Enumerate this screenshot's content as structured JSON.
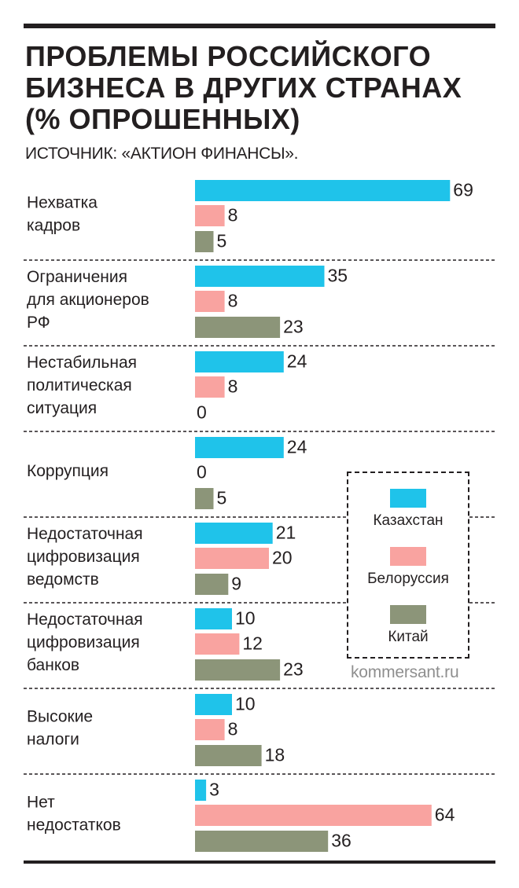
{
  "header": {
    "title_lines": [
      "ПРОБЛЕМЫ РОССИЙСКОГО",
      "БИЗНЕСА В ДРУГИХ СТРАНАХ",
      "(% ОПРОШЕННЫХ)"
    ],
    "source": "ИСТОЧНИК: «АКТИОН ФИНАНСЫ»."
  },
  "watermark": "kommersant.ru",
  "chart_data": {
    "type": "bar",
    "orientation": "horizontal",
    "title": "ПРОБЛЕМЫ РОССИЙСКОГО БИЗНЕСА В ДРУГИХ СТРАНАХ (% ОПРОШЕННЫХ)",
    "categories": [
      [
        "Нехватка",
        "кадров"
      ],
      [
        "Ограничения",
        "для акционеров",
        "РФ"
      ],
      [
        "Нестабильная",
        "политическая",
        "ситуация"
      ],
      [
        "Коррупция"
      ],
      [
        "Недостаточная",
        "цифровизация",
        "ведомств"
      ],
      [
        "Недостаточная",
        "цифровизация",
        "банков"
      ],
      [
        "Высокие",
        "налоги"
      ],
      [
        "Нет",
        "недостатков"
      ]
    ],
    "series": [
      {
        "name": "Казахстан",
        "color": "#1fc3ea",
        "values": [
          69,
          35,
          24,
          24,
          21,
          10,
          10,
          3
        ]
      },
      {
        "name": "Белоруссия",
        "color": "#f9a3a0",
        "values": [
          8,
          8,
          8,
          0,
          20,
          12,
          8,
          64
        ]
      },
      {
        "name": "Китай",
        "color": "#8c9579",
        "values": [
          5,
          23,
          0,
          5,
          9,
          23,
          18,
          36
        ]
      }
    ],
    "xlim": [
      0,
      69
    ],
    "legend_placement": "right",
    "grid": false
  }
}
